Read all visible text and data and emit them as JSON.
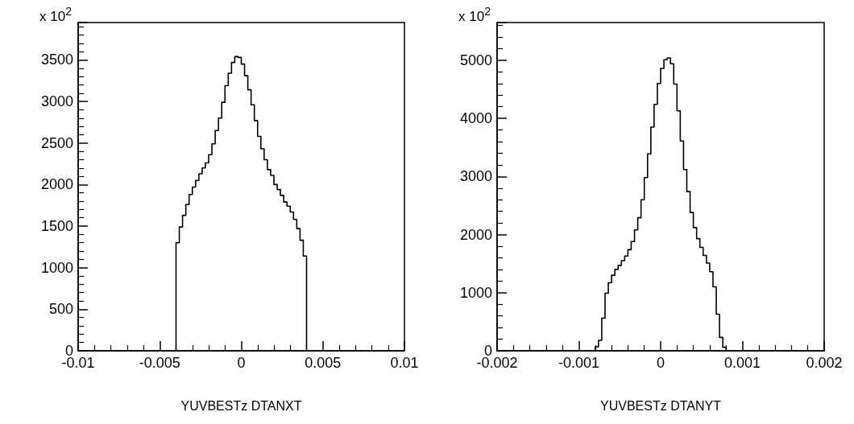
{
  "chart_data": [
    {
      "type": "histogram",
      "xlabel": "YUVBESTz DTANXT",
      "ylabel": "x 10$^{2}$",
      "color": "#000000",
      "bins": [
        -0.004,
        -0.0038,
        -0.0036,
        -0.0034,
        -0.0032,
        -0.003,
        -0.0028,
        -0.0026,
        -0.0024,
        -0.0022,
        -0.002,
        -0.0018,
        -0.0016,
        -0.0014,
        -0.0012,
        -0.001,
        -0.0008,
        -0.0006,
        -0.0004,
        -0.0002,
        0,
        0.0002,
        0.0004,
        0.0006,
        0.0008,
        0.001,
        0.0012,
        0.0014,
        0.0016,
        0.0018,
        0.002,
        0.0022,
        0.0024,
        0.0026,
        0.0028,
        0.003,
        0.0032,
        0.0034,
        0.0036,
        0.0038,
        0.004
      ],
      "values": [
        1300,
        1490,
        1630,
        1760,
        1880,
        1970,
        2050,
        2130,
        2200,
        2260,
        2360,
        2490,
        2650,
        2800,
        2990,
        3190,
        3340,
        3470,
        3540,
        3530,
        3450,
        3310,
        3140,
        2960,
        2770,
        2580,
        2430,
        2300,
        2180,
        2110,
        2000,
        1940,
        1870,
        1790,
        1740,
        1670,
        1580,
        1470,
        1330,
        1140
      ],
      "xlim": [
        -0.01,
        0.01
      ],
      "xticks": [
        -0.01,
        -0.005,
        0,
        0.005,
        0.01
      ],
      "ylim": [
        0,
        3950
      ],
      "yticks": [
        0,
        500,
        1000,
        1500,
        2000,
        2500,
        3000,
        3500
      ]
    },
    {
      "type": "histogram",
      "xlabel": "YUVBESTz DTANYT",
      "ylabel": "x 10$^{2}$",
      "color": "#000000",
      "bins": [
        -0.0008,
        -0.00076,
        -0.00072,
        -0.00068,
        -0.00064,
        -0.0006,
        -0.00056,
        -0.00052,
        -0.00048,
        -0.00044,
        -0.0004,
        -0.00036,
        -0.00032,
        -0.00028,
        -0.00024,
        -0.0002,
        -0.00016,
        -0.00012,
        -8e-05,
        -4e-05,
        0,
        4e-05,
        8e-05,
        0.00012,
        0.00016,
        0.0002,
        0.00024,
        0.00028,
        0.00032,
        0.00036,
        0.0004,
        0.00044,
        0.00048,
        0.00052,
        0.00056,
        0.0006,
        0.00064,
        0.00068,
        0.00072,
        0.00076,
        0.0008
      ],
      "values": [
        70,
        180,
        560,
        990,
        1170,
        1300,
        1400,
        1470,
        1550,
        1630,
        1740,
        1880,
        2080,
        2290,
        2600,
        2980,
        3390,
        3850,
        4240,
        4600,
        4860,
        5010,
        5040,
        4940,
        4590,
        4130,
        3610,
        3120,
        2740,
        2380,
        2120,
        1930,
        1780,
        1640,
        1510,
        1360,
        1100,
        630,
        230,
        60
      ],
      "xlim": [
        -0.002,
        0.002
      ],
      "xticks": [
        -0.002,
        -0.001,
        0,
        0.001,
        0.002
      ],
      "ylim": [
        0,
        5650
      ],
      "yticks": [
        0,
        1000,
        2000,
        3000,
        4000,
        5000
      ]
    }
  ]
}
